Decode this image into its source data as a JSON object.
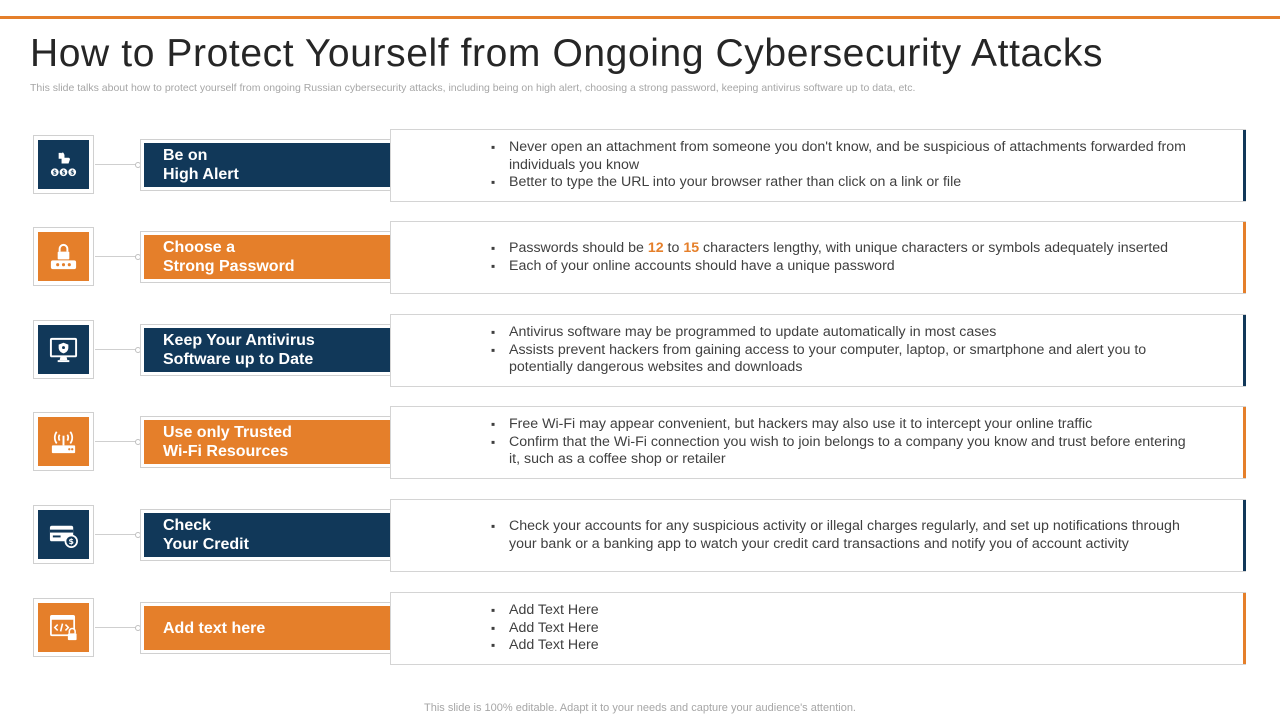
{
  "title": "How to Protect Yourself from Ongoing Cybersecurity Attacks",
  "subtitle": "This slide talks about how to protect yourself from ongoing Russian cybersecurity attacks, including being on high alert, choosing a strong password, keeping antivirus software up to data, etc.",
  "colors": {
    "accent": "#E57F2A",
    "navy": "#113859"
  },
  "rows": [
    {
      "icon": "thumbs-up-money-icon",
      "color": "navy",
      "label": "Be on\nHigh Alert",
      "bullets": [
        "Never open an attachment from someone you don't know, and be suspicious of attachments forwarded from individuals you know",
        "Better to type the URL into your browser rather than click on a link or file"
      ]
    },
    {
      "icon": "lock-password-icon",
      "color": "orange",
      "label": "Choose a\nStrong Password",
      "bullets_rich": [
        {
          "pre": "Passwords should be ",
          "n1": "12",
          "mid": " to ",
          "n2": "15",
          "post": " characters lengthy, with unique characters or symbols adequately inserted"
        }
      ],
      "bullets": [
        "Each of your online accounts should have a unique password"
      ]
    },
    {
      "icon": "monitor-shield-icon",
      "color": "navy",
      "label": "Keep Your Antivirus\nSoftware up to Date",
      "bullets": [
        "Antivirus software may be programmed to update automatically in most cases",
        "Assists prevent hackers from gaining access to your computer, laptop, or smartphone and alert you to potentially dangerous websites and downloads"
      ]
    },
    {
      "icon": "wifi-router-icon",
      "color": "orange",
      "label": "Use only Trusted\nWi-Fi Resources",
      "bullets": [
        "Free Wi-Fi may appear convenient, but hackers may also use it to intercept your online traffic",
        "Confirm that the Wi-Fi connection you wish to join belongs to a company you know and trust before entering it, such as a coffee shop or retailer"
      ]
    },
    {
      "icon": "credit-card-icon",
      "color": "navy",
      "label": "Check\nYour Credit",
      "bullets": [
        "Check your accounts for any suspicious activity or illegal charges regularly, and set up notifications through your bank or a banking app to watch your credit card transactions and notify you of account activity"
      ]
    },
    {
      "icon": "browser-code-lock-icon",
      "color": "orange",
      "label": "Add text here",
      "bullets": [
        "Add Text Here",
        "Add Text Here",
        "Add Text Here"
      ]
    }
  ],
  "footer": "This slide is 100% editable. Adapt it to your needs and capture your audience's attention."
}
